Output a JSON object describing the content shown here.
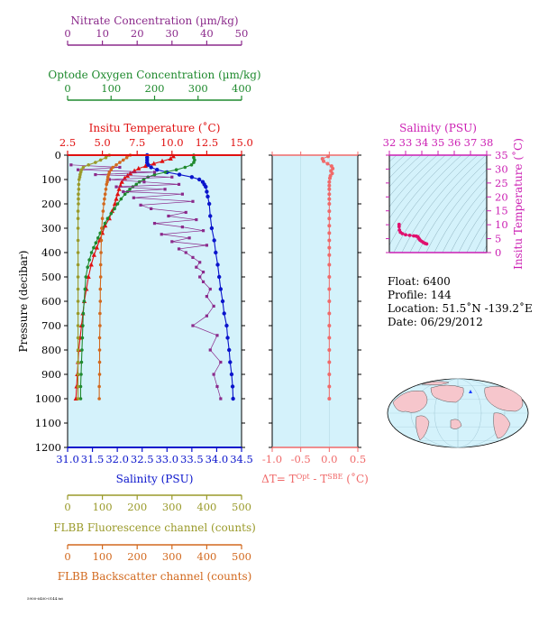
{
  "colors": {
    "nitrate": "#8b2a8b",
    "oxygen": "#1f8a2e",
    "temperature": "#e01010",
    "salinity": "#0a14cc",
    "fluorescence": "#9a9a2a",
    "backscatter": "#d2691e",
    "delta_t": "#f06a6a",
    "inset_salinity": "#cc1fb3",
    "inset_curve": "#e0106e",
    "plot_bg": "#d4f2fb"
  },
  "info": {
    "float": "Float:  6400",
    "profile": "Profile:  144",
    "location": "Location:  51.5˚N  -139.2˚E",
    "date": "Date:  06/29/2012"
  },
  "footer": "5900-6400-0144.txt",
  "chart_data": [
    {
      "type": "line",
      "name": "main-profile",
      "ylabel": "Pressure (decibar)",
      "ylim": [
        1200,
        0
      ],
      "yticks": [
        "0",
        "100",
        "200",
        "300",
        "400",
        "500",
        "600",
        "700",
        "800",
        "900",
        "1000",
        "1100",
        "1200"
      ],
      "axes": {
        "nitrate": {
          "label": "Nitrate Concentration (µm/kg)",
          "range": [
            0,
            50
          ],
          "ticks": [
            "0",
            "10",
            "20",
            "30",
            "40",
            "50"
          ]
        },
        "oxygen": {
          "label": "Optode Oxygen Concentration (µm/kg)",
          "range": [
            0,
            400
          ],
          "ticks": [
            "0",
            "100",
            "200",
            "300",
            "400"
          ]
        },
        "temperature": {
          "label": "Insitu Temperature (˚C)",
          "range": [
            2.5,
            15.0
          ],
          "ticks": [
            "2.5",
            "5.0",
            "7.5",
            "10.0",
            "12.5",
            "15.0"
          ]
        },
        "salinity": {
          "label": "Salinity (PSU)",
          "range": [
            31.0,
            34.5
          ],
          "ticks": [
            "31.0",
            "31.5",
            "32.0",
            "32.5",
            "33.0",
            "33.5",
            "34.0",
            "34.5"
          ]
        },
        "fluorescence": {
          "label": "FLBB Fluorescence channel (counts)",
          "range": [
            0,
            500
          ],
          "ticks": [
            "0",
            "100",
            "200",
            "300",
            "400",
            "500"
          ]
        },
        "backscatter": {
          "label": "FLBB Backscatter channel (counts)",
          "range": [
            0,
            500
          ],
          "ticks": [
            "0",
            "100",
            "200",
            "300",
            "400",
            "500"
          ]
        }
      },
      "series": [
        {
          "key": "temperature",
          "pressure": [
            5,
            15,
            25,
            35,
            45,
            55,
            65,
            75,
            85,
            95,
            110,
            125,
            140,
            160,
            180,
            200,
            230,
            260,
            290,
            320,
            350,
            380,
            410,
            450,
            500,
            550,
            600,
            650,
            700,
            750,
            800,
            850,
            900,
            950,
            1000
          ],
          "values": [
            10.1,
            9.9,
            9.3,
            8.7,
            8.1,
            7.6,
            7.3,
            7.0,
            6.8,
            6.6,
            6.4,
            6.3,
            6.2,
            6.1,
            6.0,
            5.9,
            5.7,
            5.5,
            5.2,
            5.0,
            4.8,
            4.6,
            4.4,
            4.2,
            4.0,
            3.85,
            3.7,
            3.6,
            3.5,
            3.4,
            3.3,
            3.25,
            3.2,
            3.15,
            3.1
          ]
        },
        {
          "key": "salinity",
          "pressure": [
            0,
            10,
            20,
            30,
            40,
            50,
            60,
            70,
            80,
            90,
            100,
            110,
            120,
            130,
            150,
            170,
            200,
            250,
            300,
            350,
            400,
            450,
            500,
            550,
            600,
            650,
            700,
            750,
            800,
            850,
            900,
            950,
            1000
          ],
          "values": [
            32.6,
            32.6,
            32.6,
            32.6,
            32.62,
            32.68,
            32.8,
            33.0,
            33.25,
            33.5,
            33.65,
            33.72,
            33.75,
            33.78,
            33.8,
            33.82,
            33.85,
            33.87,
            33.9,
            33.95,
            33.98,
            34.02,
            34.05,
            34.08,
            34.12,
            34.15,
            34.2,
            34.22,
            34.25,
            34.27,
            34.3,
            34.32,
            34.33
          ]
        },
        {
          "key": "oxygen",
          "pressure": [
            0,
            10,
            20,
            30,
            40,
            50,
            60,
            70,
            80,
            90,
            100,
            110,
            120,
            130,
            140,
            150,
            160,
            180,
            200,
            220,
            240,
            260,
            280,
            300,
            320,
            340,
            360,
            380,
            400,
            430,
            460,
            500,
            550,
            600,
            650,
            700,
            750,
            800,
            850,
            900,
            950,
            1000
          ],
          "values": [
            290,
            290,
            292,
            290,
            285,
            270,
            250,
            225,
            200,
            185,
            175,
            165,
            158,
            150,
            143,
            138,
            132,
            123,
            115,
            108,
            100,
            92,
            86,
            80,
            75,
            70,
            65,
            60,
            55,
            50,
            46,
            42,
            40,
            38,
            36,
            35,
            34,
            33,
            32,
            31,
            30,
            30
          ]
        },
        {
          "key": "nitrate",
          "pressure": [
            40,
            50,
            60,
            70,
            80,
            90,
            100,
            110,
            120,
            130,
            140,
            150,
            160,
            175,
            190,
            205,
            220,
            235,
            250,
            265,
            280,
            295,
            310,
            325,
            340,
            355,
            370,
            385,
            400,
            420,
            440,
            460,
            480,
            500,
            520,
            550,
            580,
            620,
            660,
            700,
            740,
            800,
            850,
            900,
            950,
            1000
          ],
          "values": [
            1.0,
            15.0,
            3.0,
            25.0,
            8.0,
            30.0,
            12.0,
            22.0,
            32.0,
            14.0,
            28.0,
            16.0,
            33.0,
            19.0,
            36.0,
            21.0,
            24.0,
            34.0,
            29.0,
            37.0,
            25.0,
            33.0,
            39.0,
            27.0,
            35.0,
            30.0,
            40.0,
            32.0,
            34.0,
            36.0,
            38.0,
            37.0,
            39.0,
            38.0,
            39.0,
            41.0,
            40.0,
            42.0,
            40.0,
            36.0,
            43.0,
            41.0,
            44.0,
            42.0,
            43.0,
            44.0
          ]
        },
        {
          "key": "fluorescence",
          "pressure": [
            0,
            10,
            20,
            30,
            40,
            50,
            60,
            70,
            80,
            90,
            100,
            120,
            140,
            160,
            180,
            200,
            230,
            260,
            300,
            350,
            400,
            450,
            500,
            550,
            600,
            650,
            700,
            750,
            800,
            850,
            900,
            950,
            1000
          ],
          "values": [
            120,
            110,
            95,
            80,
            60,
            45,
            40,
            38,
            36,
            35,
            33,
            32,
            32,
            31,
            31,
            31,
            30,
            30,
            30,
            30,
            30,
            30,
            30,
            30,
            30,
            30,
            30,
            30,
            30,
            30,
            30,
            30,
            30
          ]
        },
        {
          "key": "backscatter",
          "pressure": [
            0,
            10,
            20,
            30,
            40,
            50,
            60,
            70,
            80,
            90,
            100,
            110,
            120,
            140,
            160,
            180,
            200,
            230,
            260,
            300,
            350,
            400,
            450,
            500,
            550,
            600,
            650,
            700,
            750,
            800,
            850,
            900,
            950,
            1000
          ],
          "values": [
            180,
            170,
            160,
            150,
            140,
            130,
            125,
            120,
            118,
            116,
            115,
            114,
            112,
            110,
            108,
            106,
            104,
            102,
            100,
            98,
            97,
            96,
            95,
            95,
            94,
            94,
            93,
            93,
            92,
            92,
            92,
            92,
            91,
            91
          ]
        }
      ]
    },
    {
      "type": "line",
      "name": "delta-t",
      "xlabel": "ΔT= T",
      "xlabel_sup1": "Opt",
      "xlabel_mid": " - T",
      "xlabel_sup2": "SBE",
      "xlabel_end": " (˚C)",
      "xlim": [
        -1.0,
        0.5
      ],
      "xticks": [
        "-1.0",
        "-0.5",
        "0.0",
        "0.5"
      ],
      "ylim": [
        1200,
        0
      ],
      "pressure": [
        5,
        15,
        25,
        35,
        45,
        55,
        65,
        75,
        85,
        95,
        110,
        125,
        140,
        160,
        180,
        200,
        230,
        260,
        290,
        320,
        350,
        380,
        410,
        450,
        500,
        550,
        600,
        650,
        700,
        750,
        800,
        850,
        900,
        950,
        1000
      ],
      "values": [
        -0.02,
        -0.12,
        -0.1,
        -0.03,
        0.04,
        0.06,
        0.03,
        0.05,
        0.02,
        0.01,
        0.0,
        0.0,
        0.0,
        0.0,
        0.0,
        0.0,
        0.0,
        0.0,
        0.0,
        0.0,
        0.0,
        0.0,
        0.0,
        0.0,
        0.0,
        0.0,
        0.0,
        0.0,
        0.0,
        0.0,
        0.0,
        0.0,
        0.0,
        0.0,
        0.0
      ]
    },
    {
      "type": "scatter",
      "name": "ts-diagram",
      "title": "Salinity (PSU)",
      "ylabel": "Insitu Temperature (˚C)",
      "xlim": [
        32,
        38
      ],
      "ylim": [
        0,
        35
      ],
      "xticks": [
        "32",
        "33",
        "34",
        "35",
        "36",
        "37",
        "38"
      ],
      "yticks": [
        "0",
        "5",
        "10",
        "15",
        "20",
        "25",
        "30",
        "35"
      ],
      "x": [
        32.6,
        32.6,
        32.62,
        32.68,
        32.8,
        33.0,
        33.25,
        33.5,
        33.65,
        33.75,
        33.8,
        33.85,
        33.9,
        34.0,
        34.1,
        34.2,
        34.3
      ],
      "y": [
        10.1,
        9.3,
        8.1,
        7.3,
        6.8,
        6.4,
        6.2,
        6.0,
        5.9,
        5.7,
        5.2,
        4.8,
        4.4,
        4.0,
        3.6,
        3.3,
        3.1
      ]
    }
  ]
}
